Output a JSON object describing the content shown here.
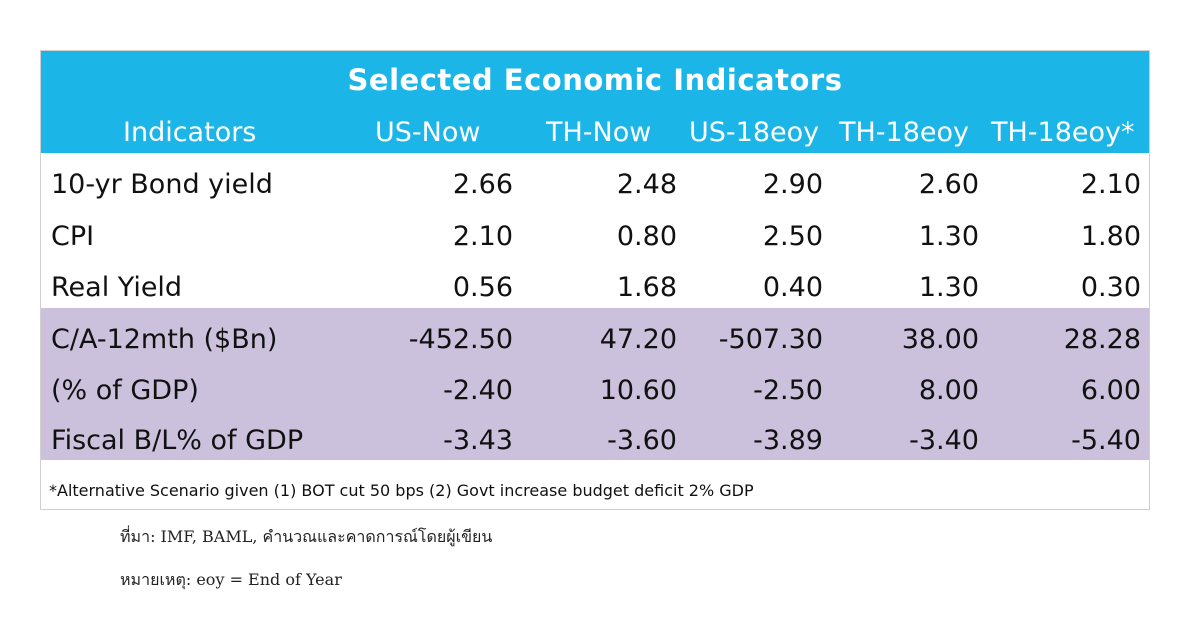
{
  "table": {
    "title": "Selected Economic Indicators",
    "headers": [
      "Indicators",
      "US-Now",
      "TH-Now",
      "US-18eoy",
      "TH-18eoy",
      "TH-18eoy*"
    ],
    "rows": [
      {
        "label": "10-yr Bond yield",
        "values": [
          "2.66",
          "2.48",
          "2.90",
          "2.60",
          "2.10"
        ]
      },
      {
        "label": "CPI",
        "values": [
          "2.10",
          "0.80",
          "2.50",
          "1.30",
          "1.80"
        ]
      },
      {
        "label": "Real Yield",
        "values": [
          "0.56",
          "1.68",
          "0.40",
          "1.30",
          "0.30"
        ]
      },
      {
        "label": "C/A-12mth ($Bn)",
        "values": [
          "-452.50",
          "47.20",
          "-507.30",
          "38.00",
          "28.28"
        ]
      },
      {
        "label": "(% of GDP)",
        "values": [
          "-2.40",
          "10.60",
          "-2.50",
          "8.00",
          "6.00"
        ]
      },
      {
        "label": "Fiscal B/L% of GDP",
        "values": [
          "-3.43",
          "-3.60",
          "-3.89",
          "-3.40",
          "-5.40"
        ]
      }
    ],
    "footnote": "*Alternative Scenario given (1) BOT cut 50 bps (2) Govt increase budget deficit 2% GDP"
  },
  "source": "ที่มา: IMF, BAML, คำนวณและคาดการณ์โดยผู้เขียน",
  "note": "หมายเหตุ: eoy = End of Year",
  "colors": {
    "header": "#1cb5e8",
    "shaded_rows": "#cbc1dc"
  }
}
